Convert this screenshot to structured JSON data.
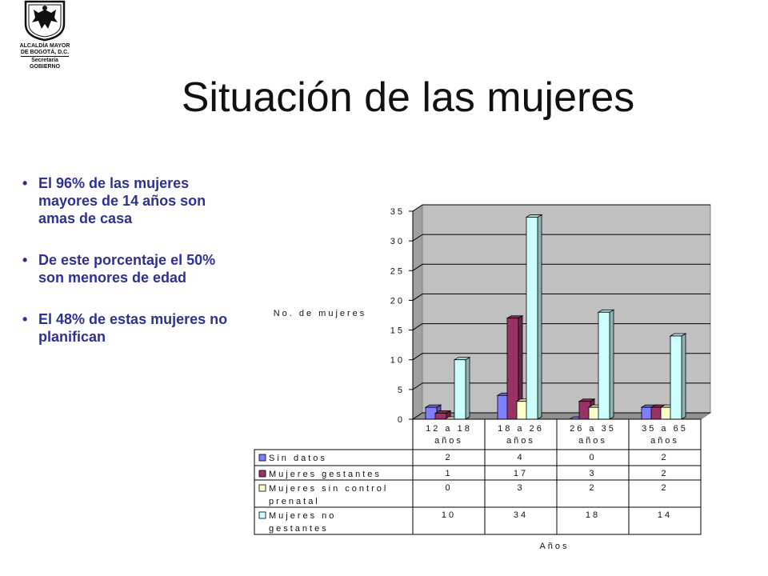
{
  "logo": {
    "line1": "ALCALDÍA MAYOR",
    "line2": "DE BOGOTÁ, D.C.",
    "line3": "Secretaría",
    "line4": "GOBIERNO"
  },
  "title": "Situación de las mujeres",
  "bullets": [
    "El 96% de las mujeres mayores de 14 años son amas de casa",
    "De este porcentaje el 50% son menores de edad",
    "El 48% de estas mujeres no planifican"
  ],
  "colors": {
    "bullet_text": "#2e3192",
    "plot_bg": "#c0c0c0",
    "series": [
      "#8080ff",
      "#993366",
      "#ffffcc",
      "#ccffff"
    ]
  },
  "chart_data": {
    "type": "bar",
    "ylabel": "No. de mujeres",
    "xlabel": "Años",
    "categories": [
      "12 a 18 años",
      "18 a 26 años",
      "26 a 35 años",
      "35 a 65 años"
    ],
    "series": [
      {
        "name": "Sin datos",
        "values": [
          2,
          4,
          0,
          2
        ]
      },
      {
        "name": "Mujeres gestantes",
        "values": [
          1,
          17,
          3,
          2
        ]
      },
      {
        "name": "Mujeres sin control prenatal",
        "values": [
          0,
          3,
          2,
          2
        ]
      },
      {
        "name": "Mujeres no gestantes",
        "values": [
          10,
          34,
          18,
          14
        ]
      }
    ],
    "ylim": [
      0,
      35
    ],
    "yticks": [
      0,
      5,
      10,
      15,
      20,
      25,
      30,
      35
    ],
    "ytick_labels": [
      "0",
      "5",
      "10",
      "15",
      "20",
      "25",
      "30",
      "35"
    ],
    "table_labels": [
      {
        "rows": [
          "Sin datos"
        ]
      },
      {
        "rows": [
          "Mujeres gestantes"
        ]
      },
      {
        "rows": [
          "Mujeres sin control",
          "prenatal"
        ]
      },
      {
        "rows": [
          "Mujeres no",
          "gestantes"
        ]
      }
    ],
    "table_values": [
      [
        "2",
        "4",
        "0",
        "2"
      ],
      [
        "1",
        "17",
        "3",
        "2"
      ],
      [
        "0",
        "3",
        "2",
        "2"
      ],
      [
        "10",
        "34",
        "18",
        "14"
      ]
    ],
    "grid": true,
    "legend": "data table below chart"
  }
}
